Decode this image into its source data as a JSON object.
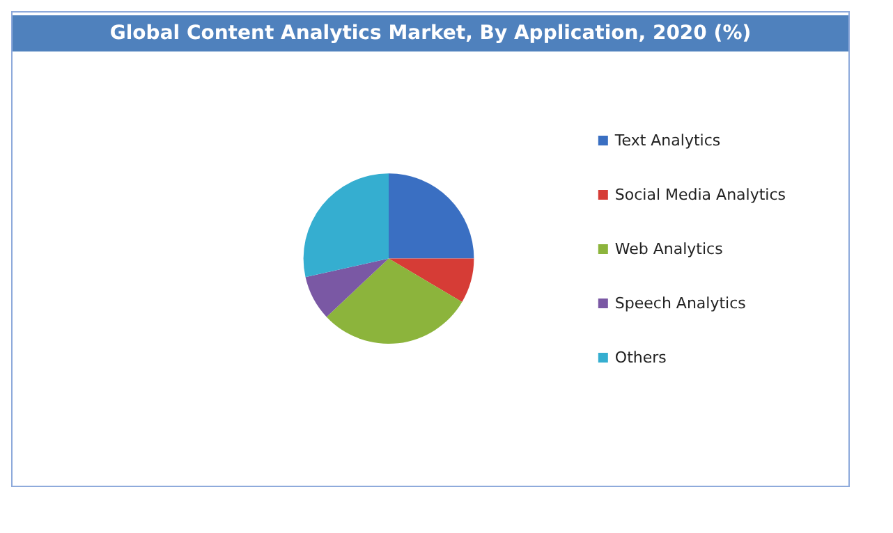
{
  "chart_data": {
    "type": "pie",
    "title": "Global Content Analytics Market, By Application, 2020 (%)",
    "categories": [
      "Text Analytics",
      "Social Media Analytics",
      "Web Analytics",
      "Speech Analytics",
      "Others"
    ],
    "values": [
      25,
      8.5,
      29.5,
      8.5,
      28.5
    ],
    "colors": [
      "#3a6fc2",
      "#d63c36",
      "#8cb43c",
      "#7a58a4",
      "#35aed0"
    ],
    "legend": "right"
  }
}
